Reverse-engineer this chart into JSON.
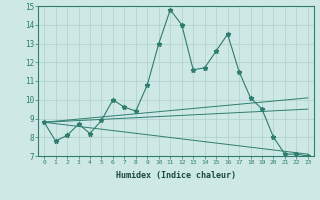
{
  "xlabel": "Humidex (Indice chaleur)",
  "ylabel": "",
  "background_color": "#cde8e5",
  "line_color": "#2e7d6e",
  "xlim": [
    -0.5,
    23.5
  ],
  "ylim": [
    7,
    15
  ],
  "xtick_labels": [
    "0",
    "1",
    "2",
    "3",
    "4",
    "5",
    "6",
    "7",
    "8",
    "9",
    "10",
    "11",
    "12",
    "13",
    "14",
    "15",
    "16",
    "17",
    "18",
    "19",
    "20",
    "21",
    "22",
    "23"
  ],
  "ytick_labels": [
    "7",
    "8",
    "9",
    "10",
    "11",
    "12",
    "13",
    "14",
    "15"
  ],
  "lines": [
    {
      "x": [
        0,
        1,
        2,
        3,
        4,
        5,
        6,
        7,
        8,
        9,
        10,
        11,
        12,
        13,
        14,
        15,
        16,
        17,
        18,
        19,
        20,
        21,
        22,
        23
      ],
      "y": [
        8.8,
        7.8,
        8.1,
        8.7,
        8.2,
        8.9,
        10.0,
        9.6,
        9.4,
        10.8,
        13.0,
        14.8,
        14.0,
        11.6,
        11.7,
        12.6,
        13.5,
        11.5,
        10.1,
        9.5,
        8.0,
        7.1,
        7.1,
        7.0
      ]
    },
    {
      "x": [
        0,
        23
      ],
      "y": [
        8.8,
        7.1
      ]
    },
    {
      "x": [
        0,
        23
      ],
      "y": [
        8.8,
        9.5
      ]
    },
    {
      "x": [
        0,
        23
      ],
      "y": [
        8.8,
        10.1
      ]
    }
  ]
}
